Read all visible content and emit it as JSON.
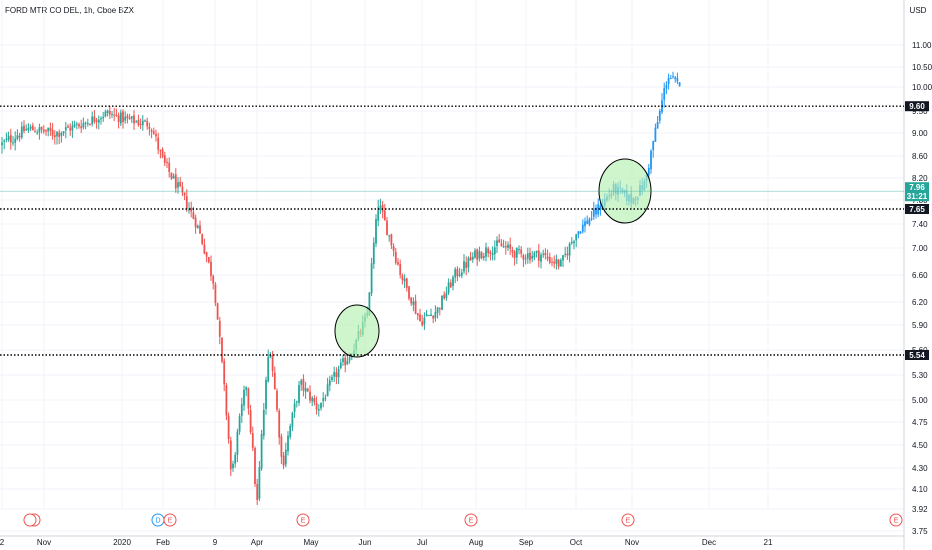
{
  "header": {
    "title": "FORD MTR CO DEL, 1h, Cboe BZX"
  },
  "currency_label": "USD",
  "colors": {
    "up": "#26a69a",
    "down": "#ef5350",
    "recent": "#2196f3",
    "circle_fill": "#b6efb0",
    "circle_stroke": "#000000",
    "tag_black": "#131722",
    "tag_teal": "#26a69a",
    "event_red": "#ef5350",
    "event_blue": "#2196f3"
  },
  "chart_data": {
    "type": "candlestick",
    "y_ticks": [
      "11.00",
      "10.50",
      "10.00",
      "9.50",
      "9.00",
      "8.60",
      "8.20",
      "7.80",
      "7.40",
      "7.00",
      "6.60",
      "6.20",
      "5.90",
      "5.60",
      "5.30",
      "5.00",
      "4.75",
      "4.50",
      "4.30",
      "4.10",
      "3.92",
      "3.75"
    ],
    "x_ticks": [
      "2",
      "Nov",
      "2020",
      "Feb",
      "9",
      "Apr",
      "May",
      "Jun",
      "Jul",
      "Aug",
      "Sep",
      "Oct",
      "Nov",
      "Dec",
      "21"
    ],
    "ylim": [
      3.75,
      11.5
    ],
    "horizontal_levels": [
      9.6,
      7.65,
      5.54
    ],
    "price_tags": [
      {
        "value": 9.6,
        "label": "9.60",
        "style": "black"
      },
      {
        "value": 7.96,
        "label": "7.96",
        "style": "teal"
      },
      {
        "value": 7.9,
        "label": "31:21",
        "style": "teal"
      },
      {
        "value": 7.65,
        "label": "7.65",
        "style": "black"
      },
      {
        "value": 5.54,
        "label": "5.54",
        "style": "black"
      }
    ],
    "last_price": 7.96,
    "highlight_circles": [
      {
        "x_label": "Jun",
        "x_offset_days": -8,
        "price": 5.8
      },
      {
        "x_label": "Nov",
        "x_offset_days": -4,
        "price": 7.95
      }
    ],
    "events": [
      {
        "x_label": "2",
        "labels": [
          "E"
        ],
        "color": "red"
      },
      {
        "x_label": "2020",
        "labels": [
          "D",
          "E"
        ],
        "color": "mixed"
      },
      {
        "x_label": "Apr",
        "labels": [
          "E"
        ],
        "color": "red"
      },
      {
        "x_label": "Jul",
        "labels": [
          "E"
        ],
        "color": "red"
      },
      {
        "x_label": "Nov",
        "labels": [
          "E"
        ],
        "color": "red"
      },
      {
        "x_label": "21",
        "labels": [
          "E"
        ],
        "color": "red"
      }
    ],
    "path": [
      [
        "2019-10-01",
        8.8
      ],
      [
        "2019-10-20",
        9.1
      ],
      [
        "2019-11-10",
        9.0
      ],
      [
        "2019-11-30",
        9.2
      ],
      [
        "2019-12-20",
        9.45
      ],
      [
        "2020-01-05",
        9.3
      ],
      [
        "2020-01-22",
        9.2
      ],
      [
        "2020-02-01",
        8.5
      ],
      [
        "2020-02-10",
        8.1
      ],
      [
        "2020-02-25",
        7.4
      ],
      [
        "2020-03-08",
        6.5
      ],
      [
        "2020-03-18",
        4.2
      ],
      [
        "2020-03-26",
        5.2
      ],
      [
        "2020-04-01",
        3.95
      ],
      [
        "2020-04-08",
        5.7
      ],
      [
        "2020-04-15",
        4.3
      ],
      [
        "2020-04-25",
        5.2
      ],
      [
        "2020-05-05",
        4.9
      ],
      [
        "2020-05-15",
        5.3
      ],
      [
        "2020-05-25",
        5.6
      ],
      [
        "2020-06-02",
        6.0
      ],
      [
        "2020-06-08",
        7.75
      ],
      [
        "2020-06-20",
        6.6
      ],
      [
        "2020-06-30",
        5.95
      ],
      [
        "2020-07-10",
        6.1
      ],
      [
        "2020-07-20",
        6.6
      ],
      [
        "2020-08-01",
        6.9
      ],
      [
        "2020-08-15",
        7.05
      ],
      [
        "2020-08-28",
        6.9
      ],
      [
        "2020-09-10",
        6.9
      ],
      [
        "2020-09-22",
        6.75
      ],
      [
        "2020-10-01",
        7.25
      ],
      [
        "2020-10-12",
        7.6
      ],
      [
        "2020-10-22",
        8.0
      ],
      [
        "2020-11-01",
        7.8
      ],
      [
        "2020-11-06",
        8.1
      ],
      [
        "2020-11-11",
        9.25
      ],
      [
        "2020-11-15",
        10.3
      ],
      [
        "2020-11-18",
        10.1
      ],
      [
        "2020-11-20",
        9.9
      ]
    ],
    "recent_from": "2020-10-02"
  }
}
